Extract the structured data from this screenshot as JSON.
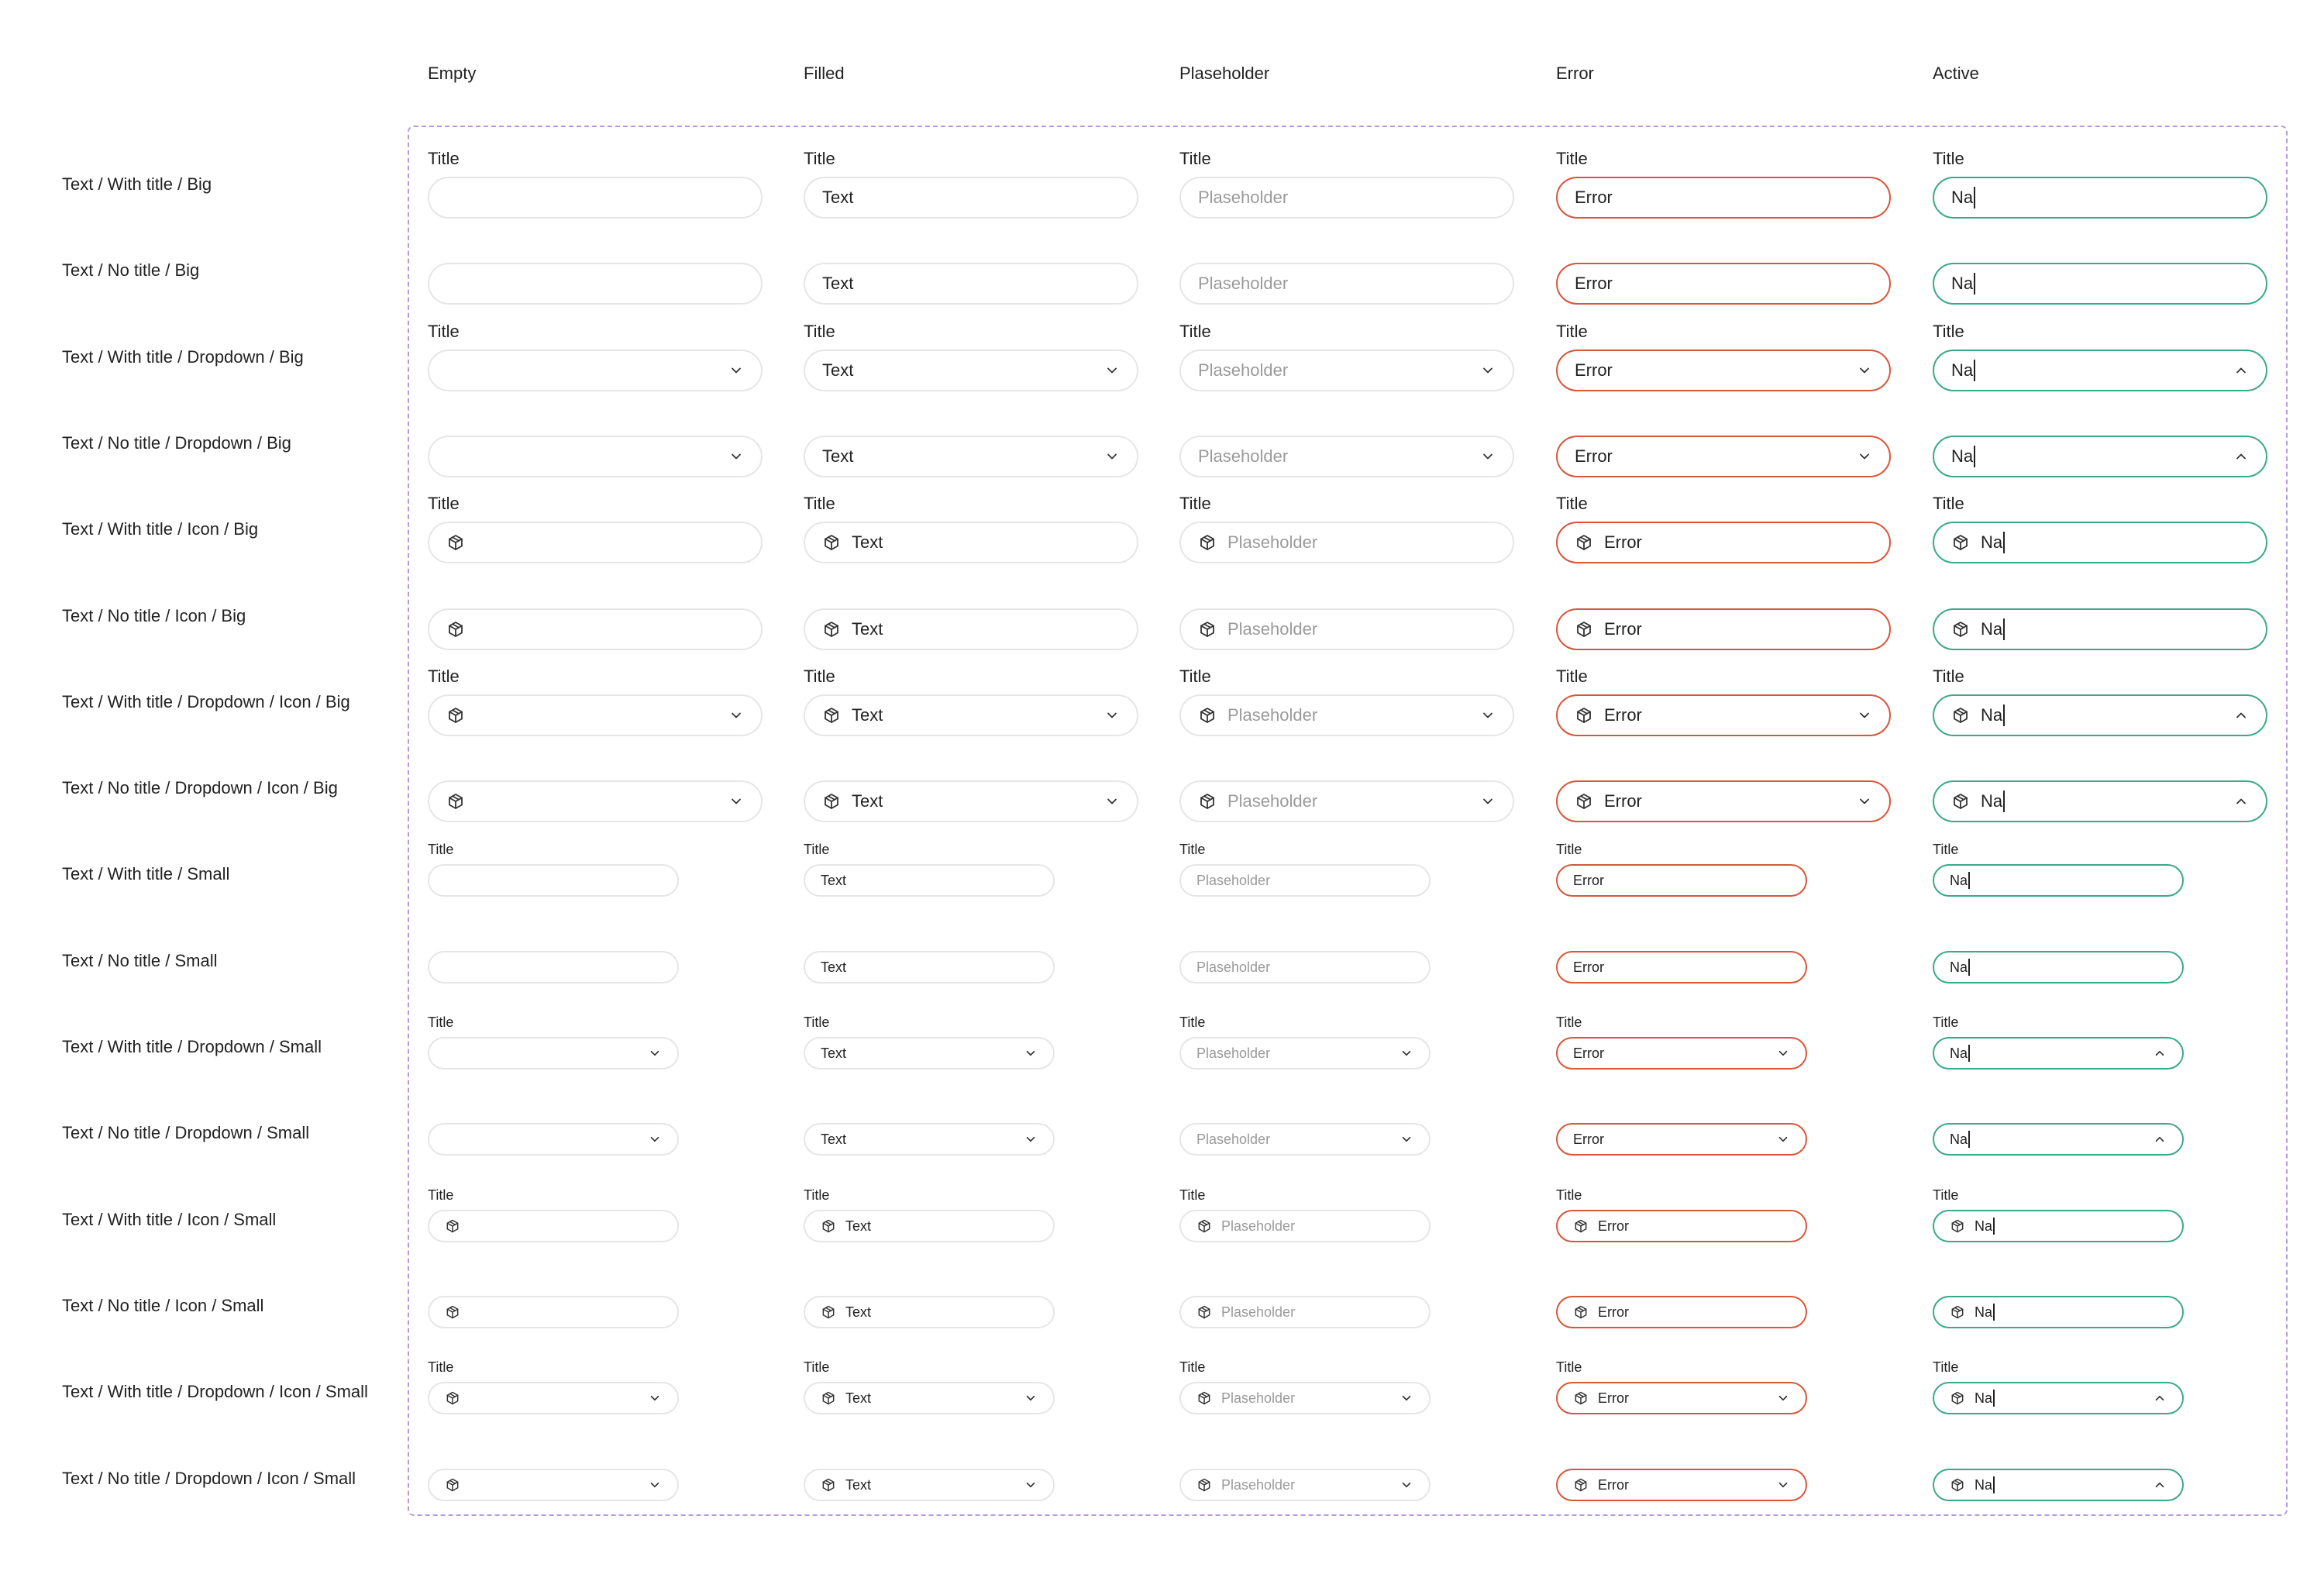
{
  "columns": [
    {
      "key": "empty",
      "label": "Empty"
    },
    {
      "key": "filled",
      "label": "Filled"
    },
    {
      "key": "placeholder",
      "label": "Plaseholder"
    },
    {
      "key": "error",
      "label": "Error"
    },
    {
      "key": "active",
      "label": "Active"
    }
  ],
  "field_title": "Title",
  "values": {
    "empty": "",
    "filled": "Text",
    "placeholder": "Plaseholder",
    "error": "Error",
    "active": "Na"
  },
  "icons": {
    "field_icon": "box-icon",
    "dropdown_closed": "chevron-down-icon",
    "dropdown_open": "chevron-up-icon"
  },
  "colors": {
    "border_default": "#e6e6e6",
    "border_error": "#d9563a",
    "border_active": "#3aa98a",
    "frame_dashed": "#b79ad9",
    "placeholder_text": "#9a9a9a"
  },
  "rows": [
    {
      "label": "Text / With title / Big",
      "title": true,
      "dropdown": false,
      "icon": false,
      "size": "big"
    },
    {
      "label": "Text / No title / Big",
      "title": false,
      "dropdown": false,
      "icon": false,
      "size": "big"
    },
    {
      "label": "Text / With title / Dropdown / Big",
      "title": true,
      "dropdown": true,
      "icon": false,
      "size": "big"
    },
    {
      "label": "Text / No title / Dropdown / Big",
      "title": false,
      "dropdown": true,
      "icon": false,
      "size": "big"
    },
    {
      "label": "Text / With title / Icon / Big",
      "title": true,
      "dropdown": false,
      "icon": true,
      "size": "big"
    },
    {
      "label": "Text / No title / Icon / Big",
      "title": false,
      "dropdown": false,
      "icon": true,
      "size": "big"
    },
    {
      "label": "Text / With title / Dropdown / Icon / Big",
      "title": true,
      "dropdown": true,
      "icon": true,
      "size": "big"
    },
    {
      "label": "Text / No title / Dropdown / Icon / Big",
      "title": false,
      "dropdown": true,
      "icon": true,
      "size": "big"
    },
    {
      "label": "Text / With title / Small",
      "title": true,
      "dropdown": false,
      "icon": false,
      "size": "small"
    },
    {
      "label": "Text / No title / Small",
      "title": false,
      "dropdown": false,
      "icon": false,
      "size": "small"
    },
    {
      "label": "Text / With title / Dropdown / Small",
      "title": true,
      "dropdown": true,
      "icon": false,
      "size": "small"
    },
    {
      "label": "Text / No title / Dropdown / Small",
      "title": false,
      "dropdown": true,
      "icon": false,
      "size": "small"
    },
    {
      "label": "Text / With title / Icon / Small",
      "title": true,
      "dropdown": false,
      "icon": true,
      "size": "small"
    },
    {
      "label": "Text / No title / Icon / Small",
      "title": false,
      "dropdown": false,
      "icon": true,
      "size": "small"
    },
    {
      "label": "Text / With title / Dropdown / Icon / Small",
      "title": true,
      "dropdown": true,
      "icon": true,
      "size": "small"
    },
    {
      "label": "Text / No title / Dropdown / Icon / Small",
      "title": false,
      "dropdown": true,
      "icon": true,
      "size": "small"
    }
  ]
}
